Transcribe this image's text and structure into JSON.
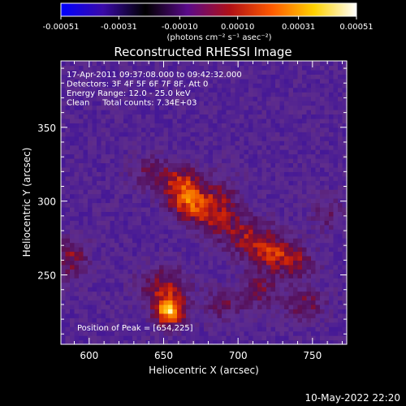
{
  "chart_data": {
    "type": "heatmap",
    "title": "Reconstructed RHESSI Image",
    "xlabel": "Heliocentric X (arcsec)",
    "ylabel": "Heliocentric Y (arcsec)",
    "xlim": [
      581,
      773
    ],
    "ylim": [
      203,
      395
    ],
    "x_ticks": [
      600,
      650,
      700,
      750
    ],
    "y_ticks": [
      250,
      300,
      350
    ],
    "colorbar": {
      "ticks": [
        "-0.00051",
        "-0.00031",
        "-0.00010",
        "0.00010",
        "0.00031",
        "0.00051"
      ],
      "range": [
        -0.00051,
        0.00051
      ],
      "units_label": "(photons cm⁻² s⁻¹ asec⁻²)",
      "colormap": [
        "#0000ff",
        "#3a0aa8",
        "#000000",
        "#5a0a8a",
        "#b01016",
        "#ff5a00",
        "#ffd200",
        "#ffffff"
      ]
    },
    "info_lines": [
      "17-Apr-2011 09:37:08.000 to 09:42:32.000",
      "Detectors: 3F 4F 5F 6F 7F 8F, Att 0",
      "Energy Range: 12.0 - 25.0 keV",
      "Clean     Total counts: 7.34E+03"
    ],
    "peak_label": "Position of Peak = [654,225]",
    "peak": [
      654,
      225
    ],
    "sources": [
      {
        "x": 654,
        "y": 225,
        "amp": 1.0,
        "sx": 7,
        "sy": 7
      },
      {
        "x": 650,
        "y": 242,
        "amp": 0.55,
        "sx": 12,
        "sy": 10
      },
      {
        "x": 662,
        "y": 312,
        "amp": 0.6,
        "sx": 10,
        "sy": 10
      },
      {
        "x": 668,
        "y": 300,
        "amp": 0.5,
        "sx": 10,
        "sy": 8
      },
      {
        "x": 680,
        "y": 290,
        "amp": 0.45,
        "sx": 12,
        "sy": 8
      },
      {
        "x": 705,
        "y": 278,
        "amp": 0.5,
        "sx": 14,
        "sy": 9
      },
      {
        "x": 722,
        "y": 265,
        "amp": 0.55,
        "sx": 12,
        "sy": 8
      },
      {
        "x": 740,
        "y": 258,
        "amp": 0.4,
        "sx": 10,
        "sy": 8
      },
      {
        "x": 690,
        "y": 305,
        "amp": 0.35,
        "sx": 10,
        "sy": 10
      },
      {
        "x": 640,
        "y": 320,
        "amp": 0.35,
        "sx": 10,
        "sy": 8
      },
      {
        "x": 588,
        "y": 262,
        "amp": 0.5,
        "sx": 8,
        "sy": 10
      },
      {
        "x": 760,
        "y": 292,
        "amp": 0.35,
        "sx": 8,
        "sy": 8
      },
      {
        "x": 715,
        "y": 240,
        "amp": 0.4,
        "sx": 10,
        "sy": 10
      },
      {
        "x": 745,
        "y": 230,
        "amp": 0.45,
        "sx": 10,
        "sy": 8
      },
      {
        "x": 690,
        "y": 230,
        "amp": 0.35,
        "sx": 10,
        "sy": 8
      }
    ]
  },
  "footer": {
    "date": "10-May-2022 22:20"
  }
}
